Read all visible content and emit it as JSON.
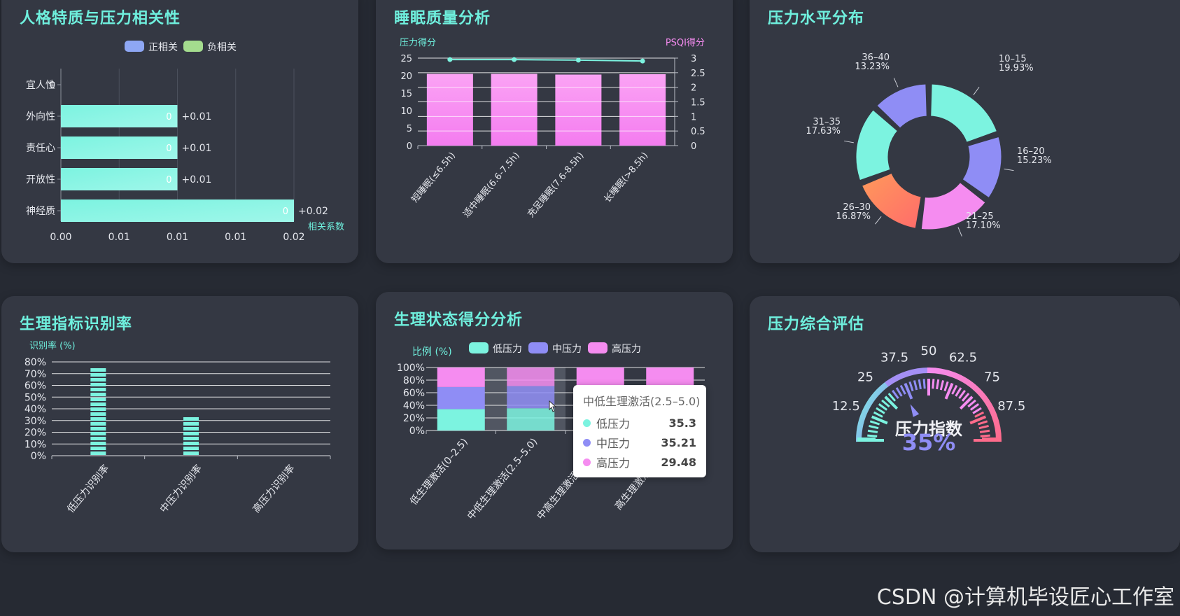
{
  "colors": {
    "background": "#262a33",
    "panel": "#343843",
    "title": "#6ff0de",
    "teal": "#7cf3e0",
    "purple": "#8f8df5",
    "pink": "#f58cf0",
    "orange": "#ff9a5a",
    "axis_text": "#e6e8ee"
  },
  "panels": {
    "personality": {
      "title": "人格特质与压力相关性"
    },
    "sleep": {
      "title": "睡眠质量分析"
    },
    "stress_dist": {
      "title": "压力水平分布"
    },
    "physio_rate": {
      "title": "生理指标识别率"
    },
    "physio_score": {
      "title": "生理状态得分分析"
    },
    "gauge": {
      "title": "压力综合评估"
    }
  },
  "chart_data": [
    {
      "id": "personality",
      "type": "bar",
      "orientation": "horizontal",
      "legend": [
        "正相关",
        "负相关"
      ],
      "legend_colors": [
        "#8ea7f4",
        "#a4dc8e"
      ],
      "categories": [
        "宜人性",
        "外向性",
        "责任心",
        "开放性",
        "神经质"
      ],
      "values": [
        0,
        0.01,
        0.01,
        0.01,
        0.02
      ],
      "inner_labels": [
        "0",
        "0",
        "0",
        "0",
        "0"
      ],
      "outer_labels": [
        "",
        "+0.01",
        "+0.01",
        "+0.01",
        "+0.02"
      ],
      "x_ticks": [
        "0.00",
        "0.01",
        "0.01",
        "0.01",
        "0.02"
      ],
      "xlabel": "相关系数",
      "xlim": [
        0,
        0.02
      ]
    },
    {
      "id": "sleep",
      "type": "bar",
      "categories": [
        "短睡眠(≤6.5h)",
        "适中睡眠(6.6-7.5h)",
        "充足睡眠(7.6-8.5h)",
        "长睡眠(>8.5h)"
      ],
      "series": [
        {
          "name": "压力得分",
          "type": "bar",
          "values": [
            20.5,
            20.5,
            20.3,
            20.4
          ]
        },
        {
          "name": "PSQI得分",
          "type": "line",
          "values": [
            2.95,
            2.95,
            2.93,
            2.9
          ]
        }
      ],
      "ylabel_left": "压力得分",
      "ylabel_right": "PSQI得分",
      "ylim_left": [
        0,
        25
      ],
      "ylim_right": [
        0,
        3
      ],
      "left_ticks": [
        "0",
        "5",
        "10",
        "15",
        "20",
        "25"
      ],
      "right_ticks": [
        "0",
        "0.5",
        "1",
        "1.5",
        "2",
        "2.5",
        "3"
      ]
    },
    {
      "id": "stress_dist",
      "type": "pie",
      "slices": [
        {
          "label": "10–15",
          "pct": "19.93%",
          "value": 19.93,
          "color_a": "#7cf3e0",
          "color_b": "#7cf3e0"
        },
        {
          "label": "16–20",
          "pct": "15.23%",
          "value": 15.23,
          "color_a": "#8f8df5",
          "color_b": "#8f8df5"
        },
        {
          "label": "21–25",
          "pct": "17.10%",
          "value": 17.1,
          "color_a": "#f58cf0",
          "color_b": "#f58cf0"
        },
        {
          "label": "26–30",
          "pct": "16.87%",
          "value": 16.87,
          "color_a": "#ff9a5a",
          "color_b": "#ff6b6b"
        },
        {
          "label": "31–35",
          "pct": "17.63%",
          "value": 17.63,
          "color_a": "#7cf3e0",
          "color_b": "#7cf3e0"
        },
        {
          "label": "36–40",
          "pct": "13.23%",
          "value": 13.23,
          "color_a": "#8f8df5",
          "color_b": "#8f8df5"
        }
      ]
    },
    {
      "id": "physio_rate",
      "type": "bar",
      "ylabel": "识别率 (%)",
      "categories": [
        "低压力识别率",
        "中压力识别率",
        "高压力识别率"
      ],
      "values": [
        75,
        34,
        0
      ],
      "ylim": [
        0,
        80
      ],
      "y_ticks": [
        "0%",
        "10%",
        "20%",
        "30%",
        "40%",
        "50%",
        "60%",
        "70%",
        "80%"
      ]
    },
    {
      "id": "physio_score",
      "type": "bar",
      "stacked": true,
      "ylabel": "比例 (%)",
      "categories": [
        "低生理激活(0–2.5)",
        "中低生理激活(2.5–5.0)",
        "中高生理激活(5.0–7.5)",
        "高生理激活(7.5–10)"
      ],
      "y_ticks": [
        "0%",
        "20%",
        "40%",
        "60%",
        "80%",
        "100%"
      ],
      "series": [
        {
          "name": "低压力",
          "values": [
            34,
            35.3,
            34,
            34
          ]
        },
        {
          "name": "中压力",
          "values": [
            35,
            35.21,
            35,
            35
          ]
        },
        {
          "name": "高压力",
          "values": [
            31,
            29.48,
            31,
            31
          ]
        }
      ]
    },
    {
      "id": "gauge",
      "type": "gauge",
      "label": "压力指数",
      "value_text": "35%",
      "value": 35,
      "ticks": [
        "12.5",
        "25",
        "37.5",
        "50",
        "62.5",
        "75",
        "87.5"
      ]
    }
  ],
  "tooltip": {
    "title": "中低生理激活(2.5–5.0)",
    "rows": [
      {
        "name": "低压力",
        "value": "35.3",
        "color": "#7cf3e0"
      },
      {
        "name": "中压力",
        "value": "35.21",
        "color": "#8f8df5"
      },
      {
        "name": "高压力",
        "value": "29.48",
        "color": "#f58cf0"
      }
    ]
  },
  "watermark": "CSDN @计算机毕设匠心工作室"
}
